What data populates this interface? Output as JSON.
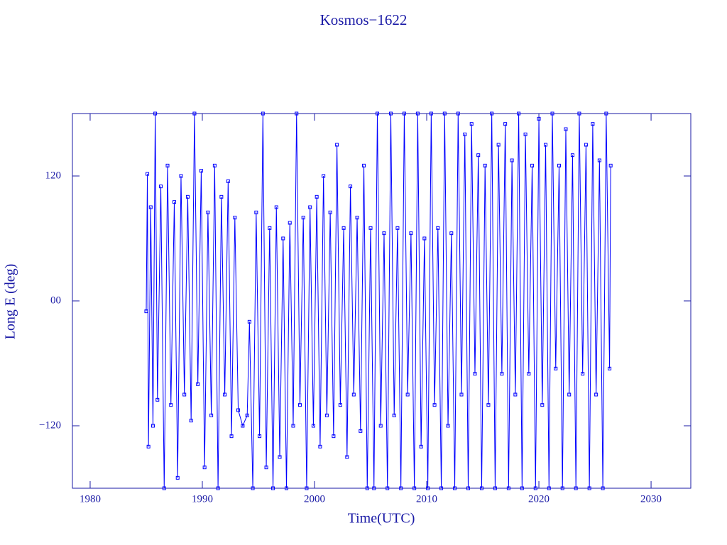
{
  "chart_data": {
    "type": "line",
    "title": "Kosmos−1622",
    "x_label": "Time(UTC)",
    "y_label": "Long E (deg)",
    "xlim": [
      1978.42,
      2033.54
    ],
    "ylim": [
      -180,
      180
    ],
    "xticks": [
      1980,
      1990,
      2000,
      2010,
      2020,
      2030
    ],
    "yticks": [
      {
        "value": -120,
        "label": "−120"
      },
      {
        "value": 0,
        "label": "00"
      },
      120
    ],
    "grid": false,
    "marker": "square",
    "series": [
      {
        "color": "#0000ff",
        "x": [
          1985.0,
          1985.1,
          1985.2,
          1985.4,
          1985.6,
          1985.8,
          1986.0,
          1986.3,
          1986.6,
          1986.9,
          1987.2,
          1987.5,
          1987.8,
          1988.1,
          1988.4,
          1988.7,
          1989.0,
          1989.3,
          1989.6,
          1989.9,
          1990.2,
          1990.5,
          1990.8,
          1991.1,
          1991.4,
          1991.7,
          1992.0,
          1992.3,
          1992.6,
          1992.9,
          1993.2,
          1993.6,
          1994.0,
          1994.2,
          1994.5,
          1994.8,
          1995.1,
          1995.4,
          1995.7,
          1996.0,
          1996.3,
          1996.6,
          1996.9,
          1997.2,
          1997.5,
          1997.8,
          1998.1,
          1998.4,
          1998.7,
          1999.0,
          1999.3,
          1999.6,
          1999.9,
          2000.2,
          2000.5,
          2000.8,
          2001.1,
          2001.4,
          2001.7,
          2002.0,
          2002.3,
          2002.6,
          2002.9,
          2003.2,
          2003.5,
          2003.8,
          2004.1,
          2004.4,
          2004.7,
          2005.0,
          2005.3,
          2005.6,
          2005.9,
          2006.2,
          2006.5,
          2006.8,
          2007.1,
          2007.4,
          2007.7,
          2008.0,
          2008.3,
          2008.6,
          2008.9,
          2009.2,
          2009.5,
          2009.8,
          2010.1,
          2010.4,
          2010.7,
          2011.0,
          2011.3,
          2011.6,
          2011.9,
          2012.2,
          2012.5,
          2012.8,
          2013.1,
          2013.4,
          2013.7,
          2014.0,
          2014.3,
          2014.6,
          2014.9,
          2015.2,
          2015.5,
          2015.8,
          2016.1,
          2016.4,
          2016.7,
          2017.0,
          2017.3,
          2017.6,
          2017.9,
          2018.2,
          2018.5,
          2018.8,
          2019.1,
          2019.4,
          2019.7,
          2020.0,
          2020.3,
          2020.6,
          2020.9,
          2021.2,
          2021.5,
          2021.8,
          2022.1,
          2022.4,
          2022.7,
          2023.0,
          2023.3,
          2023.6,
          2023.9,
          2024.2,
          2024.5,
          2024.8,
          2025.1,
          2025.4,
          2025.7,
          2026.0,
          2026.3,
          2026.4
        ],
        "values": [
          -10,
          122,
          -140,
          90,
          -120,
          180,
          -95,
          110,
          -180,
          130,
          -100,
          95,
          -170,
          120,
          -90,
          100,
          -115,
          180,
          -80,
          125,
          -160,
          85,
          -110,
          130,
          -180,
          100,
          -90,
          115,
          -130,
          80,
          -105,
          -120,
          -110,
          -20,
          -180,
          85,
          -130,
          180,
          -160,
          70,
          -180,
          90,
          -150,
          60,
          -180,
          75,
          -120,
          180,
          -100,
          80,
          -180,
          90,
          -120,
          100,
          -140,
          120,
          -110,
          85,
          -130,
          150,
          -100,
          70,
          -150,
          110,
          -90,
          80,
          -125,
          130,
          -180,
          70,
          -180,
          180,
          -120,
          65,
          -180,
          180,
          -110,
          70,
          -180,
          180,
          -90,
          65,
          -180,
          180,
          -140,
          60,
          -180,
          180,
          -100,
          70,
          -180,
          180,
          -120,
          65,
          -180,
          180,
          -90,
          160,
          -180,
          170,
          -70,
          140,
          -180,
          130,
          -100,
          180,
          -180,
          150,
          -70,
          170,
          -180,
          135,
          -90,
          180,
          -180,
          160,
          -70,
          130,
          -180,
          175,
          -100,
          150,
          -180,
          180,
          -65,
          130,
          -180,
          165,
          -90,
          140,
          -180,
          180,
          -70,
          150,
          -180,
          170,
          -90,
          135,
          -180,
          180,
          -65,
          130
        ]
      }
    ]
  }
}
